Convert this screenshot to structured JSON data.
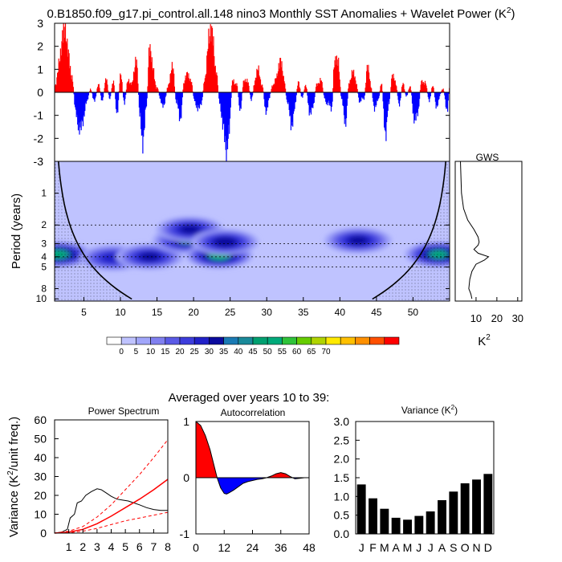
{
  "title": "0.B1850.f09_g17.pi_control.all.148 nino3 Monthly SST Anomalies + Wavelet Power (K",
  "title_sup": "2",
  "title_close": ")",
  "averaged_label": "Averaged over years 10 to 39:",
  "chart_data": [
    {
      "id": "anomalies",
      "type": "bar",
      "description_units": "K",
      "xlim": [
        1,
        55
      ],
      "ylim": [
        -3,
        3
      ],
      "yticks": [
        3,
        2,
        1,
        0,
        -1,
        -2,
        -3
      ],
      "ytick_labels": [
        "3",
        "2",
        "1",
        "0",
        "-1",
        "-2",
        "-3"
      ],
      "positive_color": "#ff0000",
      "negative_color": "#0000ff",
      "events": [
        [
          1.0,
          0.3
        ],
        [
          1.6,
          1.3
        ],
        [
          2.2,
          2.9
        ],
        [
          2.8,
          1.8
        ],
        [
          3.3,
          0.6
        ],
        [
          3.8,
          -0.7
        ],
        [
          4.3,
          -1.7
        ],
        [
          4.8,
          -1.2
        ],
        [
          5.3,
          -0.5
        ],
        [
          5.8,
          0.2
        ],
        [
          6.3,
          -0.4
        ],
        [
          6.9,
          0.3
        ],
        [
          7.4,
          -0.3
        ],
        [
          8.0,
          0.5
        ],
        [
          8.5,
          -0.2
        ],
        [
          9.0,
          0.4
        ],
        [
          9.5,
          -0.9
        ],
        [
          10.0,
          0.8
        ],
        [
          10.5,
          -0.5
        ],
        [
          11.0,
          0.6
        ],
        [
          11.5,
          0.3
        ],
        [
          12.1,
          1.5
        ],
        [
          12.6,
          -1.0
        ],
        [
          13.0,
          -2.2
        ],
        [
          13.5,
          -0.6
        ],
        [
          13.9,
          2.0
        ],
        [
          14.4,
          1.0
        ],
        [
          14.9,
          0.2
        ],
        [
          15.4,
          -0.3
        ],
        [
          15.9,
          -0.6
        ],
        [
          16.5,
          0.4
        ],
        [
          17.1,
          1.1
        ],
        [
          17.6,
          -0.4
        ],
        [
          18.1,
          -1.2
        ],
        [
          18.6,
          0.3
        ],
        [
          19.1,
          0.9
        ],
        [
          19.6,
          0.4
        ],
        [
          20.0,
          -0.2
        ],
        [
          20.5,
          -0.8
        ],
        [
          21.0,
          -0.4
        ],
        [
          21.5,
          0.5
        ],
        [
          22.0,
          2.4
        ],
        [
          22.5,
          2.6
        ],
        [
          23.0,
          0.9
        ],
        [
          23.5,
          -0.4
        ],
        [
          24.0,
          -1.5
        ],
        [
          24.4,
          -2.6
        ],
        [
          24.8,
          -1.6
        ],
        [
          25.3,
          0.6
        ],
        [
          25.8,
          0.3
        ],
        [
          26.3,
          -0.7
        ],
        [
          26.8,
          0.4
        ],
        [
          27.3,
          0.6
        ],
        [
          27.8,
          -0.4
        ],
        [
          28.3,
          0.5
        ],
        [
          28.8,
          1.0
        ],
        [
          29.3,
          0.3
        ],
        [
          29.8,
          -0.8
        ],
        [
          30.3,
          -0.3
        ],
        [
          30.8,
          0.4
        ],
        [
          31.3,
          0.6
        ],
        [
          31.8,
          1.5
        ],
        [
          32.3,
          0.5
        ],
        [
          32.8,
          -0.4
        ],
        [
          33.3,
          -1.5
        ],
        [
          33.8,
          -0.6
        ],
        [
          34.3,
          0.5
        ],
        [
          34.8,
          -0.3
        ],
        [
          35.3,
          0.4
        ],
        [
          35.8,
          -1.0
        ],
        [
          36.3,
          -0.5
        ],
        [
          36.8,
          0.3
        ],
        [
          37.3,
          0.6
        ],
        [
          37.8,
          -0.2
        ],
        [
          38.3,
          -0.5
        ],
        [
          38.8,
          -0.7
        ],
        [
          39.2,
          1.3
        ],
        [
          39.7,
          1.4
        ],
        [
          40.2,
          -0.4
        ],
        [
          40.7,
          -1.3
        ],
        [
          41.2,
          0.3
        ],
        [
          41.7,
          1.0
        ],
        [
          42.2,
          0.3
        ],
        [
          42.7,
          -0.4
        ],
        [
          43.2,
          -0.3
        ],
        [
          43.7,
          1.1
        ],
        [
          44.2,
          0.3
        ],
        [
          44.7,
          -0.8
        ],
        [
          45.2,
          -0.2
        ],
        [
          45.6,
          0.3
        ],
        [
          46.2,
          -1.8
        ],
        [
          46.6,
          -0.6
        ],
        [
          47.1,
          0.8
        ],
        [
          47.6,
          0.3
        ],
        [
          48.1,
          -0.5
        ],
        [
          48.6,
          0.4
        ],
        [
          49.1,
          -0.2
        ],
        [
          49.6,
          0.3
        ],
        [
          50.1,
          -1.3
        ],
        [
          50.6,
          -0.8
        ],
        [
          51.1,
          0.4
        ],
        [
          51.6,
          0.5
        ],
        [
          52.1,
          -0.4
        ],
        [
          52.6,
          0.3
        ],
        [
          53.1,
          -0.6
        ],
        [
          53.6,
          -0.2
        ],
        [
          54.1,
          0.2
        ],
        [
          54.6,
          -0.9
        ],
        [
          55.0,
          0.4
        ]
      ]
    },
    {
      "id": "wavelet",
      "type": "heatmap",
      "xlim": [
        1,
        55
      ],
      "xticks": [
        5,
        10,
        15,
        20,
        25,
        30,
        35,
        40,
        45,
        50
      ],
      "ylabel": "Period (years)",
      "yticks": [
        1,
        2,
        3,
        4,
        5,
        8,
        10
      ],
      "ylim": [
        0.5,
        10.5
      ],
      "levels": [
        0,
        5,
        10,
        15,
        20,
        25,
        30,
        35,
        40,
        45,
        50,
        55,
        60,
        65,
        70
      ],
      "colors": [
        "#ffffff",
        "#bfc3ff",
        "#a1a6fa",
        "#8080f0",
        "#5a5ae6",
        "#3d3ddc",
        "#2121c8",
        "#0b0b9e",
        "#1a8a9a",
        "#00aa7a",
        "#2fc33a",
        "#66cc00",
        "#b0d400",
        "#ffea00",
        "#ffc000",
        "#ff9000",
        "#ff5000",
        "#ff0000"
      ],
      "dashed_periods": [
        2,
        3,
        4,
        5
      ],
      "peaks": [
        {
          "x": 1.5,
          "period": 3.8,
          "value": 38
        },
        {
          "x": 9,
          "period": 4.1,
          "value": 25
        },
        {
          "x": 14,
          "period": 4.0,
          "value": 28
        },
        {
          "x": 19,
          "period": 2.8,
          "value": 32
        },
        {
          "x": 19.5,
          "period": 2.2,
          "value": 28
        },
        {
          "x": 23.5,
          "period": 3.9,
          "value": 38
        },
        {
          "x": 24.3,
          "period": 2.9,
          "value": 30
        },
        {
          "x": 42.5,
          "period": 2.8,
          "value": 28
        },
        {
          "x": 53.5,
          "period": 3.8,
          "value": 36
        }
      ]
    },
    {
      "id": "gws",
      "type": "line",
      "title": "GWS",
      "xticks": [
        10,
        20,
        30
      ],
      "xlabel": "K",
      "xlabel_sup": "2",
      "xlim": [
        0,
        32
      ],
      "points": [
        [
          2.5,
          0.5
        ],
        [
          3,
          1.0
        ],
        [
          4,
          1.4
        ],
        [
          6,
          1.8
        ],
        [
          9,
          2.2
        ],
        [
          11,
          2.6
        ],
        [
          11.5,
          2.9
        ],
        [
          11,
          3.1
        ],
        [
          9,
          3.4
        ],
        [
          11,
          3.7
        ],
        [
          16,
          4.0
        ],
        [
          14,
          4.3
        ],
        [
          10,
          4.7
        ],
        [
          8,
          5.5
        ],
        [
          7,
          6.5
        ],
        [
          6.5,
          8
        ],
        [
          7.5,
          9
        ],
        [
          8,
          10
        ]
      ]
    },
    {
      "id": "colorbar",
      "type": "table",
      "labels": [
        "0",
        "5",
        "10",
        "15",
        "20",
        "25",
        "30",
        "35",
        "40",
        "45",
        "50",
        "55",
        "60",
        "65",
        "70"
      ]
    },
    {
      "id": "power_spectrum",
      "type": "line",
      "title": "Power Spectrum",
      "ylabel": "Variance (K",
      "ylabel_sup": "2",
      "ylabel_tail": "/unit freq.)",
      "xlim": [
        0,
        8
      ],
      "ylim": [
        0,
        60
      ],
      "xticks": [
        1,
        2,
        3,
        4,
        5,
        6,
        7,
        8
      ],
      "yticks": [
        0,
        10,
        20,
        30,
        40,
        50,
        60
      ],
      "series": [
        {
          "name": "spectrum",
          "color": "#000000",
          "dash": "",
          "points": [
            [
              0,
              0
            ],
            [
              0.5,
              0.5
            ],
            [
              0.9,
              2
            ],
            [
              1.1,
              8
            ],
            [
              1.4,
              10
            ],
            [
              1.6,
              16
            ],
            [
              1.9,
              17
            ],
            [
              2.2,
              20
            ],
            [
              2.6,
              22
            ],
            [
              3.0,
              23.5
            ],
            [
              3.3,
              23
            ],
            [
              3.7,
              21
            ],
            [
              4.0,
              19.5
            ],
            [
              4.4,
              18
            ],
            [
              4.8,
              17.5
            ],
            [
              5.2,
              17
            ],
            [
              5.6,
              16
            ],
            [
              6.0,
              15
            ],
            [
              6.5,
              13.5
            ],
            [
              7.0,
              12.5
            ],
            [
              7.5,
              12
            ],
            [
              8,
              12
            ]
          ]
        },
        {
          "name": "red noise",
          "color": "#ff0000",
          "dash": "",
          "width": 1.5,
          "points": [
            [
              0,
              0
            ],
            [
              1,
              0.5
            ],
            [
              2,
              2
            ],
            [
              3,
              5
            ],
            [
              4,
              9
            ],
            [
              5,
              13.5
            ],
            [
              6,
              18
            ],
            [
              7,
              23
            ],
            [
              8,
              28.5
            ]
          ]
        },
        {
          "name": "upper bound",
          "color": "#ff0000",
          "dash": "4,3",
          "points": [
            [
              0,
              0
            ],
            [
              1,
              1
            ],
            [
              2,
              3.5
            ],
            [
              3,
              8.5
            ],
            [
              4,
              15
            ],
            [
              5,
              23
            ],
            [
              6,
              31
            ],
            [
              7,
              40
            ],
            [
              8,
              49.5
            ]
          ]
        },
        {
          "name": "lower bound",
          "color": "#ff0000",
          "dash": "4,3",
          "points": [
            [
              0,
              0
            ],
            [
              1,
              0.2
            ],
            [
              2,
              1
            ],
            [
              3,
              2.5
            ],
            [
              4,
              4.5
            ],
            [
              5,
              6.5
            ],
            [
              6,
              8
            ],
            [
              7,
              9.5
            ],
            [
              8,
              11
            ]
          ]
        }
      ]
    },
    {
      "id": "autocorrelation",
      "type": "area",
      "title": "Autocorrelation",
      "xlim": [
        0,
        48
      ],
      "ylim": [
        -1,
        1
      ],
      "xticks": [
        0,
        12,
        24,
        36,
        48
      ],
      "yticks": [
        1,
        0,
        -1
      ],
      "positive_color": "#ff0000",
      "negative_color": "#0000ff",
      "points": [
        [
          0,
          1
        ],
        [
          2,
          0.93
        ],
        [
          4,
          0.75
        ],
        [
          6,
          0.5
        ],
        [
          7.5,
          0.25
        ],
        [
          9,
          0
        ],
        [
          10.5,
          -0.18
        ],
        [
          12,
          -0.28
        ],
        [
          13,
          -0.29
        ],
        [
          14,
          -0.27
        ],
        [
          16,
          -0.22
        ],
        [
          18,
          -0.16
        ],
        [
          20,
          -0.1
        ],
        [
          22,
          -0.07
        ],
        [
          24,
          -0.05
        ],
        [
          26,
          -0.03
        ],
        [
          28,
          -0.02
        ],
        [
          30,
          0
        ],
        [
          32,
          0.03
        ],
        [
          34,
          0.07
        ],
        [
          36,
          0.09
        ],
        [
          38,
          0.07
        ],
        [
          40,
          0.02
        ],
        [
          41,
          0
        ],
        [
          42,
          -0.02
        ],
        [
          44,
          -0.01
        ],
        [
          46,
          0
        ],
        [
          48,
          0
        ]
      ]
    },
    {
      "id": "monthly_variance",
      "type": "bar",
      "title": "Variance (K",
      "title_sup": "2",
      "title_close": ")",
      "ylim": [
        0,
        3.0
      ],
      "yticks": [
        "0.0",
        "0.5",
        "1.0",
        "1.5",
        "2.0",
        "2.5",
        "3.0"
      ],
      "categories": [
        "J",
        "F",
        "M",
        "A",
        "M",
        "J",
        "J",
        "A",
        "S",
        "O",
        "N",
        "D"
      ],
      "values": [
        1.32,
        0.95,
        0.67,
        0.43,
        0.38,
        0.48,
        0.6,
        0.9,
        1.13,
        1.35,
        1.45,
        1.6
      ]
    }
  ]
}
